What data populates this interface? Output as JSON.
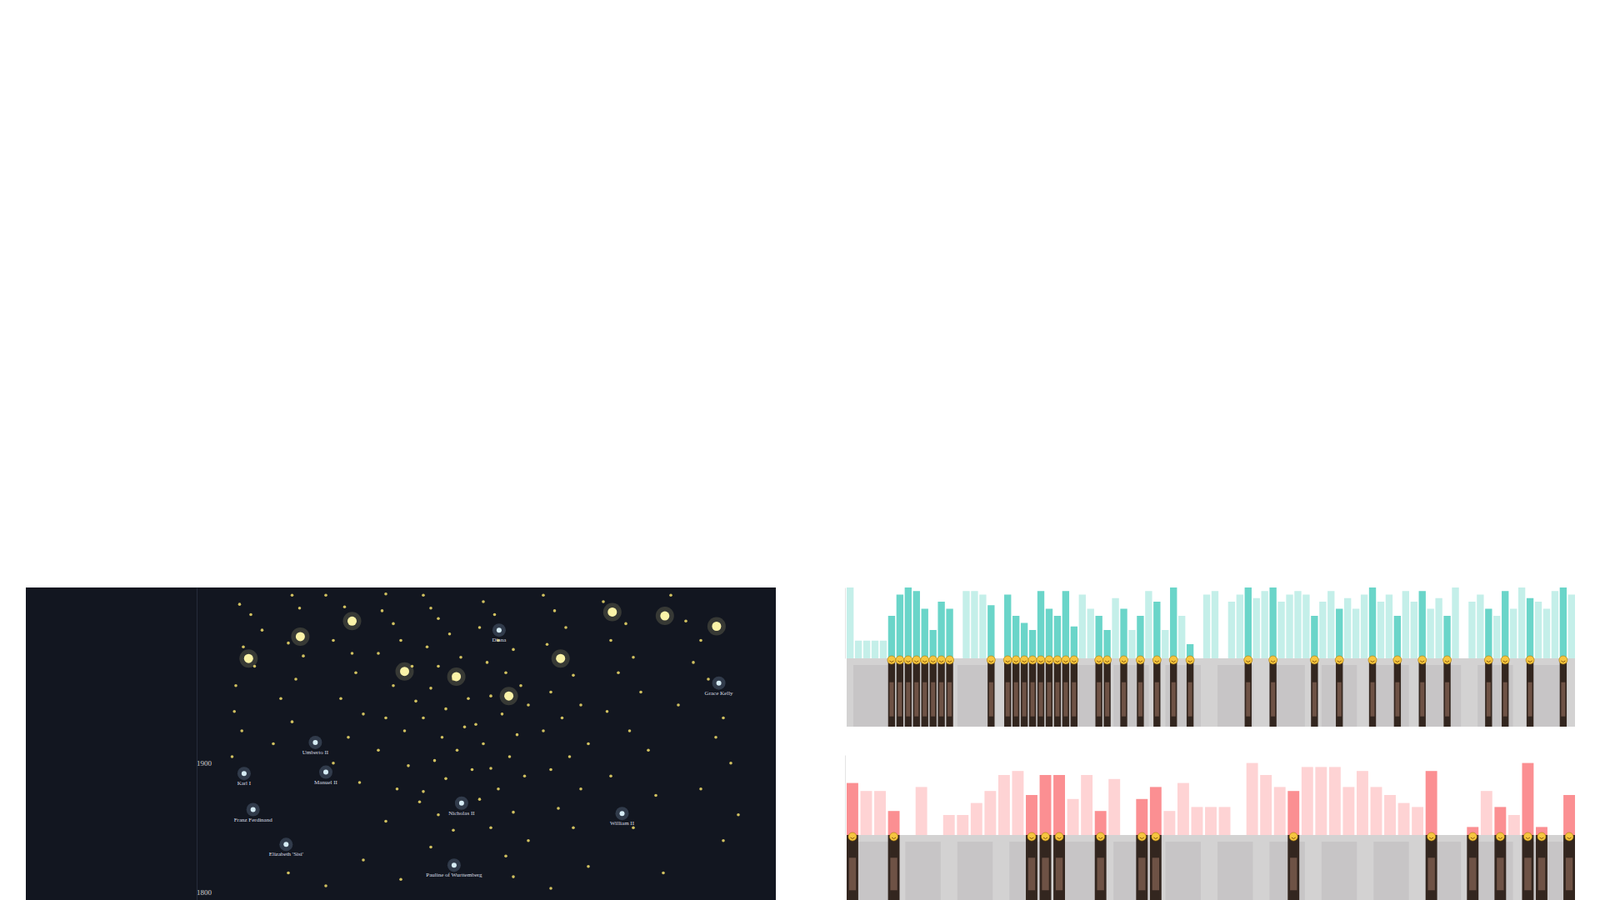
{
  "chart_data": [
    {
      "type": "scatter",
      "xlim": [
        0,
        100
      ],
      "ylim": [
        1794,
        2036
      ],
      "yticks": [
        1800,
        1900
      ],
      "tick_labels": "y",
      "series": [
        {
          "marker": "dot",
          "color": "#f3df6c",
          "x": [
            28.5,
            30,
            31.5,
            29,
            30.5,
            28,
            27.8,
            28.8,
            27.5,
            35.5,
            36.5,
            35,
            37,
            36,
            34,
            35.5,
            33,
            40,
            42.5,
            41,
            43.5,
            44,
            42,
            45,
            43,
            41,
            44.5,
            48,
            47.5,
            49,
            50,
            47,
            51.5,
            49,
            52,
            48,
            50.5,
            47,
            51,
            49.5,
            52.5,
            48,
            53,
            54,
            55,
            56.5,
            53.5,
            58,
            55,
            57,
            54,
            59,
            56,
            53,
            58.5,
            55.5,
            57.5,
            54.5,
            59.5,
            56,
            53,
            58,
            55,
            57,
            54,
            61,
            62.5,
            60.5,
            63,
            65,
            61.5,
            64,
            66,
            62,
            67,
            63.5,
            60,
            65.5,
            61,
            64.5,
            62,
            66.5,
            63,
            60.5,
            65,
            62,
            67,
            64,
            69,
            70.5,
            72,
            69.5,
            71,
            73,
            70,
            74,
            71.5,
            69,
            75,
            72.5,
            70,
            74,
            71,
            73,
            77,
            80,
            78,
            81,
            79,
            82,
            77.5,
            80.5,
            83,
            78,
            84,
            81,
            86,
            88,
            90,
            89,
            91,
            87,
            93,
            92,
            94,
            90,
            95,
            93,
            35,
            45,
            50,
            65,
            75,
            85,
            40,
            70
          ],
          "values": [
            2023,
            2015,
            2003,
            1990,
            1975,
            1960,
            1940,
            1925,
            1905,
            2030,
            2020,
            1993,
            1983,
            1965,
            1950,
            1932,
            1915,
            2030,
            2021,
            1995,
            1985,
            1970,
            1950,
            1938,
            1920,
            1900,
            1885,
            2031,
            2018,
            2008,
            1995,
            1985,
            1975,
            1960,
            1948,
            1935,
            1925,
            1910,
            1898,
            1880,
            1870,
            1855,
            2030,
            2020,
            2012,
            2000,
            1990,
            1982,
            1975,
            1965,
            1958,
            1950,
            1942,
            1935,
            1928,
            1920,
            1910,
            1902,
            1895,
            1888,
            1878,
            1870,
            1860,
            1848,
            1835,
            2025,
            2015,
            2005,
            1995,
            1988,
            1978,
            1970,
            1960,
            1952,
            1945,
            1938,
            1930,
            1922,
            1915,
            1905,
            1896,
            1890,
            1880,
            1872,
            1862,
            1850,
            1840,
            1828,
            2030,
            2018,
            2005,
            1992,
            1980,
            1968,
            1955,
            1945,
            1935,
            1925,
            1915,
            1905,
            1895,
            1880,
            1865,
            1850,
            2025,
            2008,
            1995,
            1982,
            1970,
            1955,
            1940,
            1925,
            1910,
            1890,
            1875,
            1850,
            2030,
            2010,
            1995,
            1978,
            1965,
            1945,
            1935,
            1920,
            1900,
            1880,
            1860,
            1840,
            1815,
            1825,
            1810,
            1812,
            1820,
            1815,
            1805,
            1803
          ]
        },
        {
          "marker": "glow",
          "color": "#fbf3a8",
          "x": [
            29.7,
            36.6,
            43.5,
            50.5,
            57.4,
            64.4,
            71.3,
            78.2,
            85.2,
            92.1
          ],
          "values": [
            1981,
            1998,
            2010,
            1971,
            1967,
            1952,
            1981,
            2017,
            2014,
            2006
          ]
        },
        {
          "marker": "halo",
          "color": "#d6ecf5",
          "x": [
            63.1,
            92.4,
            38.6,
            29.1,
            40.0,
            30.3,
            34.7,
            58.1,
            79.5,
            57.1
          ],
          "values": [
            2003,
            1962,
            1916,
            1892,
            1893,
            1864,
            1837,
            1869,
            1861,
            1821
          ],
          "labels": [
            "Diana",
            "Grace Kelly",
            "Umberto II",
            "Karl I",
            "Manuel II",
            "Franz Ferdinand",
            "Elizabeth 'Sisi'",
            "Nicholas II",
            "William II",
            "Pauline of Wurttemberg"
          ]
        }
      ]
    },
    {
      "type": "bar",
      "ylim": [
        0,
        100
      ],
      "tick_labels": false,
      "color": "#6ad5c9",
      "values": [
        100,
        25,
        25,
        25,
        25,
        60,
        90,
        100,
        95,
        70,
        40,
        80,
        70,
        null,
        95,
        95,
        90,
        75,
        null,
        90,
        60,
        50,
        40,
        95,
        70,
        60,
        95,
        45,
        90,
        70,
        60,
        40,
        85,
        70,
        40,
        60,
        95,
        80,
        40,
        100,
        60,
        20,
        null,
        90,
        95,
        null,
        80,
        90,
        100,
        85,
        95,
        100,
        80,
        90,
        95,
        90,
        60,
        80,
        95,
        70,
        85,
        70,
        90,
        100,
        80,
        90,
        60,
        95,
        80,
        95,
        70,
        85,
        60,
        100,
        null,
        80,
        90,
        70,
        60,
        95,
        70,
        100,
        85,
        80,
        70,
        95,
        100,
        90
      ],
      "colors": [
        "#c4efe9",
        "#c4efe9",
        "#c4efe9",
        "#c4efe9",
        "#c4efe9",
        "#6ad5c9",
        "#6ad5c9",
        "#6ad5c9",
        "#6ad5c9",
        "#6ad5c9",
        "#6ad5c9",
        "#6ad5c9",
        "#6ad5c9",
        "#c4efe9",
        "#c4efe9",
        "#c4efe9",
        "#c4efe9",
        "#6ad5c9",
        "#c4efe9",
        "#6ad5c9",
        "#6ad5c9",
        "#6ad5c9",
        "#6ad5c9",
        "#6ad5c9",
        "#6ad5c9",
        "#6ad5c9",
        "#6ad5c9",
        "#6ad5c9",
        "#c4efe9",
        "#c4efe9",
        "#6ad5c9",
        "#6ad5c9",
        "#c4efe9",
        "#6ad5c9",
        "#c4efe9",
        "#6ad5c9",
        "#c4efe9",
        "#6ad5c9",
        "#c4efe9",
        "#6ad5c9",
        "#c4efe9",
        "#6ad5c9",
        "#c4efe9",
        "#c4efe9",
        "#c4efe9",
        "#c4efe9",
        "#c4efe9",
        "#c4efe9",
        "#6ad5c9",
        "#c4efe9",
        "#c4efe9",
        "#6ad5c9",
        "#c4efe9",
        "#c4efe9",
        "#c4efe9",
        "#c4efe9",
        "#6ad5c9",
        "#c4efe9",
        "#c4efe9",
        "#6ad5c9",
        "#c4efe9",
        "#c4efe9",
        "#c4efe9",
        "#6ad5c9",
        "#c4efe9",
        "#c4efe9",
        "#6ad5c9",
        "#c4efe9",
        "#c4efe9",
        "#6ad5c9",
        "#c4efe9",
        "#c4efe9",
        "#6ad5c9",
        "#c4efe9",
        "#c4efe9",
        "#c4efe9",
        "#c4efe9",
        "#6ad5c9",
        "#c4efe9",
        "#6ad5c9",
        "#c4efe9",
        "#c4efe9",
        "#6ad5c9",
        "#c4efe9",
        "#c4efe9",
        "#c4efe9",
        "#6ad5c9",
        "#c4efe9"
      ]
    },
    {
      "type": "bar",
      "ylim": [
        0,
        100
      ],
      "tick_labels": false,
      "color": "#fb8f92",
      "values": [
        65,
        55,
        55,
        30,
        null,
        60,
        null,
        25,
        25,
        40,
        55,
        75,
        80,
        50,
        75,
        75,
        45,
        75,
        30,
        70,
        null,
        45,
        60,
        30,
        65,
        35,
        35,
        35,
        null,
        90,
        75,
        60,
        55,
        85,
        85,
        85,
        60,
        80,
        60,
        50,
        40,
        35,
        80,
        null,
        null,
        10,
        55,
        35,
        25,
        90,
        10,
        null,
        50
      ],
      "colors": [
        "#fb8f92",
        "#fed3d4",
        "#fed3d4",
        "#fb8f92",
        "#fed3d4",
        "#fed3d4",
        "#fed3d4",
        "#fed3d4",
        "#fed3d4",
        "#fed3d4",
        "#fed3d4",
        "#fed3d4",
        "#fed3d4",
        "#fb8f92",
        "#fb8f92",
        "#fb8f92",
        "#fed3d4",
        "#fed3d4",
        "#fb8f92",
        "#fed3d4",
        "#fed3d4",
        "#fb8f92",
        "#fb8f92",
        "#fed3d4",
        "#fed3d4",
        "#fed3d4",
        "#fed3d4",
        "#fed3d4",
        "#fed3d4",
        "#fed3d4",
        "#fed3d4",
        "#fed3d4",
        "#fb8f92",
        "#fed3d4",
        "#fed3d4",
        "#fed3d4",
        "#fed3d4",
        "#fed3d4",
        "#fed3d4",
        "#fed3d4",
        "#fed3d4",
        "#fed3d4",
        "#fb8f92",
        "#fed3d4",
        "#fed3d4",
        "#fb8f92",
        "#fed3d4",
        "#fb8f92",
        "#fed3d4",
        "#fb8f92",
        "#fb8f92",
        "#fed3d4",
        "#fb8f92"
      ]
    }
  ]
}
